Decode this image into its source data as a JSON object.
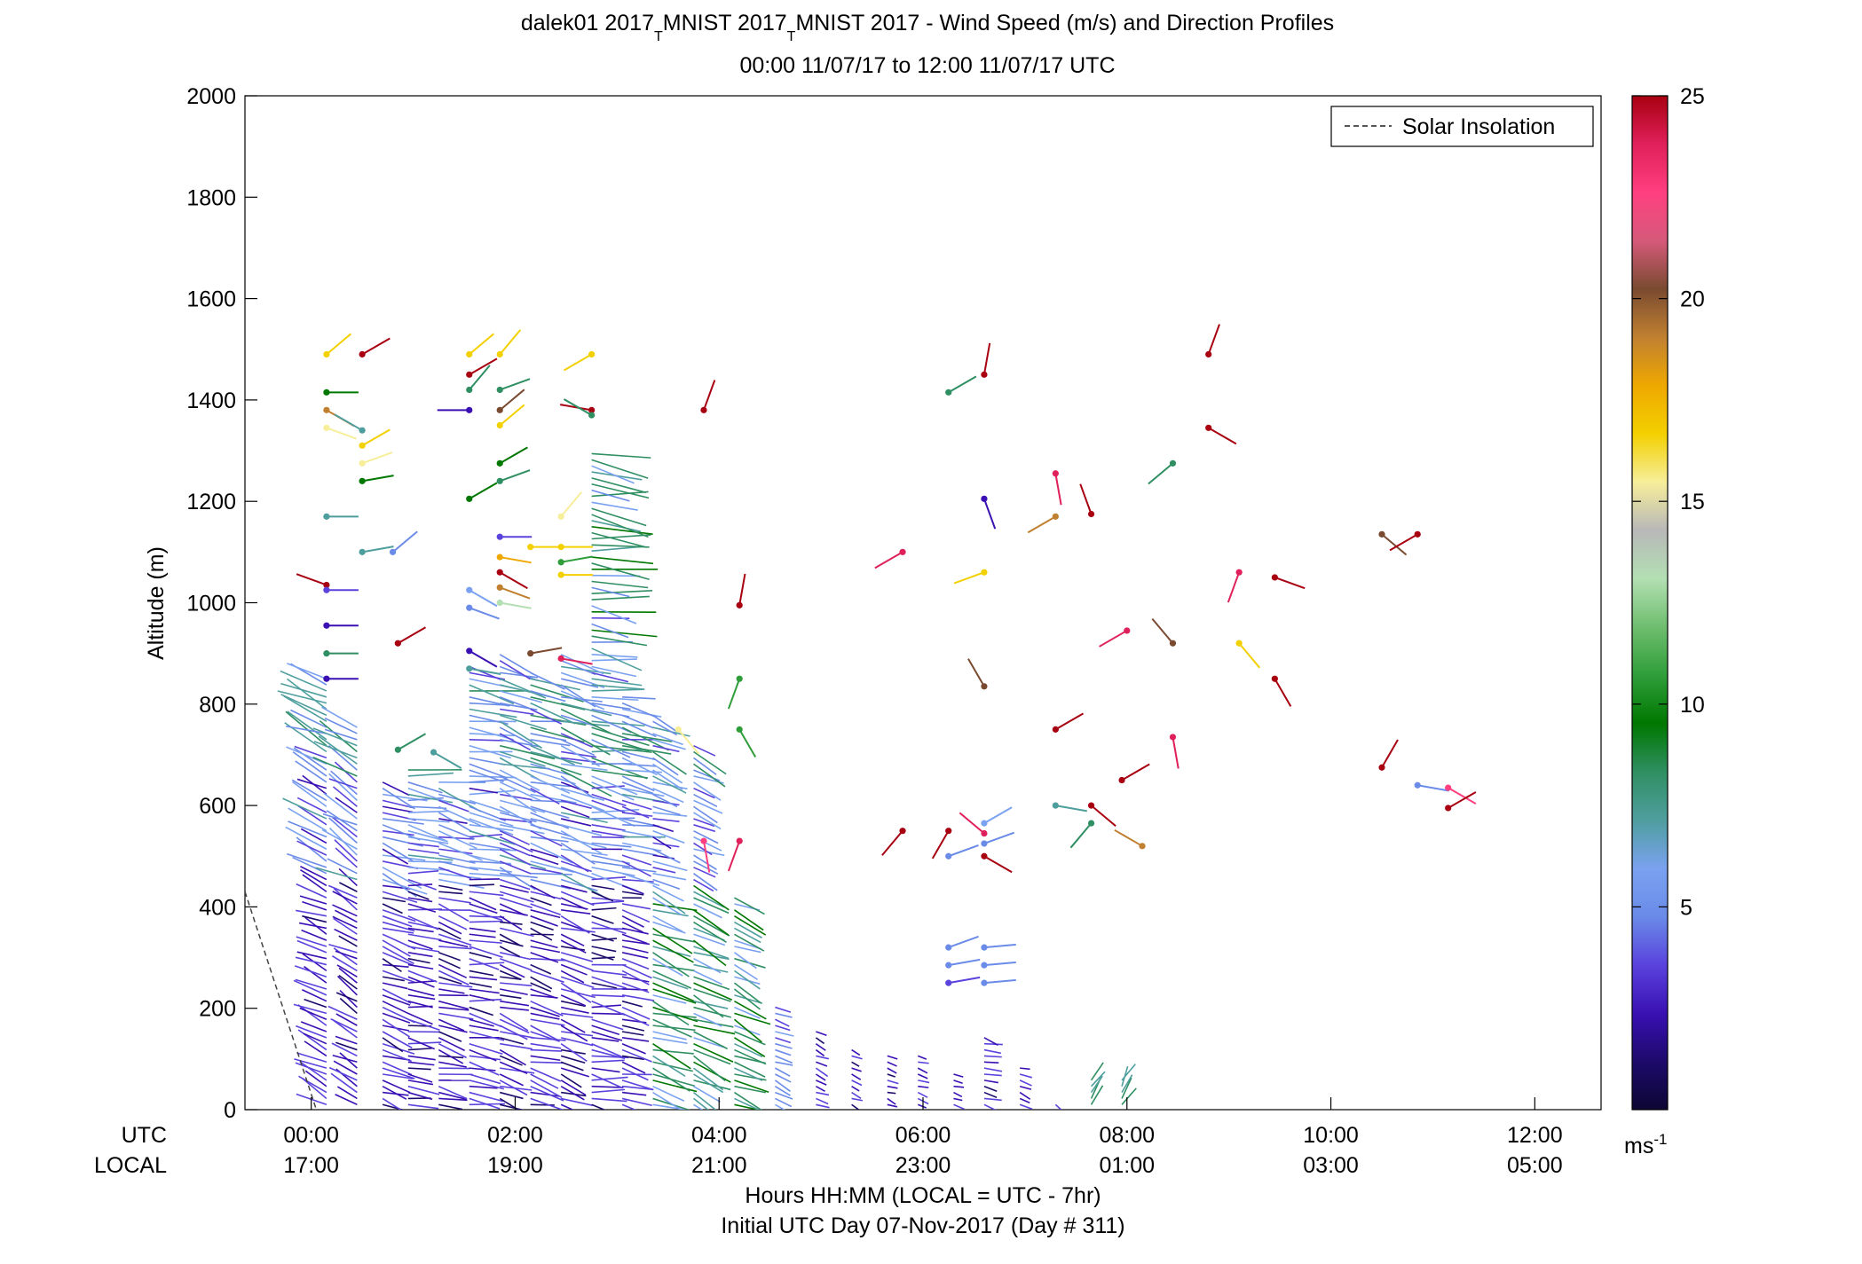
{
  "chart_data": {
    "type": "scatter",
    "title": {
      "line1_prefix": "dalek01 2017",
      "sub1": "T",
      "line1_mid": "MNIST 2017",
      "sub2": "T",
      "line1_suffix": "MNIST 2017 - Wind Speed (m/s) and Direction Profiles",
      "line2": "00:00 11/07/17 to 12:00 11/07/17  UTC"
    },
    "ylabel": "Altitude (m)",
    "ylim": [
      0,
      2000
    ],
    "y_ticks": [
      "0",
      "200",
      "400",
      "600",
      "800",
      "1000",
      "1200",
      "1400",
      "1600",
      "1800",
      "2000"
    ],
    "xlim_hours": [
      -0.65,
      12.65
    ],
    "x_ticks": [
      {
        "utc": "00:00",
        "local": "17:00"
      },
      {
        "utc": "02:00",
        "local": "19:00"
      },
      {
        "utc": "04:00",
        "local": "21:00"
      },
      {
        "utc": "06:00",
        "local": "23:00"
      },
      {
        "utc": "08:00",
        "local": "01:00"
      },
      {
        "utc": "10:00",
        "local": "03:00"
      },
      {
        "utc": "12:00",
        "local": "05:00"
      }
    ],
    "x_row_labels": {
      "utc": "UTC",
      "local": "LOCAL"
    },
    "xlabel1": "Hours HH:MM  (LOCAL = UTC - 7hr)",
    "xlabel2": "Initial UTC Day 07-Nov-2017 (Day # 311)",
    "legend": {
      "label": "Solar Insolation",
      "placement": "top-right"
    },
    "colorbar": {
      "ticks": [
        "5",
        "10",
        "15",
        "20",
        "25"
      ],
      "tick_values": [
        5,
        10,
        15,
        20,
        25
      ],
      "range": [
        0,
        25
      ],
      "unit_base": "ms",
      "unit_exp": "-1",
      "colors": [
        "#0d0633",
        "#1d0a6b",
        "#3a10b4",
        "#5a43dd",
        "#6a8be8",
        "#7aa2f0",
        "#4f9e9e",
        "#2f8f62",
        "#007700",
        "#2f9e3a",
        "#6fbe6f",
        "#b3dfb3",
        "#b8b8b8",
        "#f7ee9a",
        "#f3d000",
        "#efa800",
        "#c08030",
        "#7a4a30",
        "#d65a7a",
        "#ff3f80",
        "#e0205a",
        "#a80010"
      ]
    },
    "solar_insolation": [
      {
        "x": -0.65,
        "y": 430
      },
      {
        "x": 0.05,
        "y": 0
      }
    ],
    "profiles": [
      {
        "t": 0.15,
        "top": 860,
        "dir": 295,
        "scale": 1.0
      },
      {
        "t": 0.45,
        "top": 760,
        "dir": 300,
        "scale": 0.9
      },
      {
        "t": 0.7,
        "top": 650,
        "dir": 110,
        "scale": 1.0
      },
      {
        "t": 0.95,
        "top": 680,
        "dir": 100,
        "scale": 0.95
      },
      {
        "t": 1.25,
        "top": 650,
        "dir": 105,
        "scale": 1.0
      },
      {
        "t": 1.55,
        "top": 880,
        "dir": 100,
        "scale": 1.0
      },
      {
        "t": 1.85,
        "top": 900,
        "dir": 110,
        "scale": 1.0
      },
      {
        "t": 2.15,
        "top": 870,
        "dir": 105,
        "scale": 1.0
      },
      {
        "t": 2.45,
        "top": 900,
        "dir": 110,
        "scale": 1.0
      },
      {
        "t": 2.75,
        "top": 1300,
        "dir": 100,
        "scale": 1.05
      },
      {
        "t": 3.05,
        "top": 820,
        "dir": 105,
        "scale": 0.9
      },
      {
        "t": 3.35,
        "top": 780,
        "dir": 110,
        "scale": 0.75
      },
      {
        "t": 3.75,
        "top": 720,
        "dir": 115,
        "scale": 0.7
      },
      {
        "t": 4.15,
        "top": 420,
        "dir": 115,
        "scale": 0.6
      },
      {
        "t": 4.55,
        "top": 210,
        "dir": 115,
        "scale": 0.45
      },
      {
        "t": 4.95,
        "top": 160,
        "dir": 115,
        "scale": 0.4
      },
      {
        "t": 5.3,
        "top": 120,
        "dir": 115,
        "scale": 0.35
      },
      {
        "t": 5.65,
        "top": 110,
        "dir": 110,
        "scale": 0.35
      },
      {
        "t": 5.95,
        "top": 110,
        "dir": 110,
        "scale": 0.35
      },
      {
        "t": 6.3,
        "top": 80,
        "dir": 110,
        "scale": 0.35
      },
      {
        "t": 6.6,
        "top": 150,
        "dir": 105,
        "scale": 0.55
      },
      {
        "t": 6.95,
        "top": 90,
        "dir": 110,
        "scale": 0.4
      },
      {
        "t": 7.3,
        "top": 20,
        "dir": 120,
        "scale": 0.25
      },
      {
        "t": 7.65,
        "top": 60,
        "dir": 30,
        "scale": 0.4
      },
      {
        "t": 7.95,
        "top": 60,
        "dir": 30,
        "scale": 0.4
      }
    ],
    "barbs": [
      {
        "t": 0.15,
        "alt": 1490,
        "spd": 17,
        "dir": 50
      },
      {
        "t": 0.5,
        "alt": 1490,
        "spd": 24,
        "dir": 60
      },
      {
        "t": 0.15,
        "alt": 1415,
        "spd": 10,
        "dir": 90
      },
      {
        "t": 0.15,
        "alt": 1380,
        "spd": 19,
        "dir": 120
      },
      {
        "t": 0.15,
        "alt": 1345,
        "spd": 15,
        "dir": 110
      },
      {
        "t": 0.5,
        "alt": 1340,
        "spd": 7,
        "dir": 300
      },
      {
        "t": 0.5,
        "alt": 1310,
        "spd": 16,
        "dir": 60
      },
      {
        "t": 0.5,
        "alt": 1275,
        "spd": 15,
        "dir": 70
      },
      {
        "t": 0.5,
        "alt": 1240,
        "spd": 10,
        "dir": 80
      },
      {
        "t": 0.15,
        "alt": 1170,
        "spd": 7,
        "dir": 90
      },
      {
        "t": 0.5,
        "alt": 1100,
        "spd": 7,
        "dir": 80
      },
      {
        "t": 0.8,
        "alt": 1100,
        "spd": 5,
        "dir": 50
      },
      {
        "t": 0.15,
        "alt": 1035,
        "spd": 24,
        "dir": 290
      },
      {
        "t": 0.15,
        "alt": 1025,
        "spd": 4,
        "dir": 90
      },
      {
        "t": 0.15,
        "alt": 955,
        "spd": 3,
        "dir": 90
      },
      {
        "t": 0.15,
        "alt": 900,
        "spd": 8,
        "dir": 90
      },
      {
        "t": 0.85,
        "alt": 920,
        "spd": 24,
        "dir": 60
      },
      {
        "t": 0.15,
        "alt": 850,
        "spd": 3,
        "dir": 90
      },
      {
        "t": 0.85,
        "alt": 710,
        "spd": 8,
        "dir": 60
      },
      {
        "t": 1.2,
        "alt": 705,
        "spd": 7,
        "dir": 120
      },
      {
        "t": 1.55,
        "alt": 1490,
        "spd": 17,
        "dir": 50
      },
      {
        "t": 1.85,
        "alt": 1490,
        "spd": 17,
        "dir": 40
      },
      {
        "t": 1.55,
        "alt": 1450,
        "spd": 24,
        "dir": 60
      },
      {
        "t": 1.85,
        "alt": 1420,
        "spd": 8,
        "dir": 70
      },
      {
        "t": 1.55,
        "alt": 1420,
        "spd": 8,
        "dir": 40
      },
      {
        "t": 1.55,
        "alt": 1380,
        "spd": 3,
        "dir": 270
      },
      {
        "t": 1.85,
        "alt": 1380,
        "spd": 20,
        "dir": 50
      },
      {
        "t": 1.85,
        "alt": 1350,
        "spd": 17,
        "dir": 50
      },
      {
        "t": 1.85,
        "alt": 1275,
        "spd": 10,
        "dir": 60
      },
      {
        "t": 1.85,
        "alt": 1240,
        "spd": 9,
        "dir": 70
      },
      {
        "t": 1.55,
        "alt": 1205,
        "spd": 10,
        "dir": 60
      },
      {
        "t": 1.85,
        "alt": 1130,
        "spd": 4,
        "dir": 90
      },
      {
        "t": 1.85,
        "alt": 1090,
        "spd": 18,
        "dir": 100
      },
      {
        "t": 1.85,
        "alt": 1060,
        "spd": 24,
        "dir": 120
      },
      {
        "t": 1.85,
        "alt": 1030,
        "spd": 19,
        "dir": 110
      },
      {
        "t": 1.55,
        "alt": 1025,
        "spd": 6,
        "dir": 120
      },
      {
        "t": 1.85,
        "alt": 1000,
        "spd": 13,
        "dir": 100
      },
      {
        "t": 1.55,
        "alt": 990,
        "spd": 5,
        "dir": 110
      },
      {
        "t": 1.55,
        "alt": 905,
        "spd": 3,
        "dir": 120
      },
      {
        "t": 1.55,
        "alt": 870,
        "spd": 7,
        "dir": 100
      },
      {
        "t": 2.15,
        "alt": 1110,
        "spd": 17,
        "dir": 90
      },
      {
        "t": 2.45,
        "alt": 1170,
        "spd": 15,
        "dir": 40
      },
      {
        "t": 2.45,
        "alt": 1110,
        "spd": 16,
        "dir": 90
      },
      {
        "t": 2.45,
        "alt": 1080,
        "spd": 11,
        "dir": 80
      },
      {
        "t": 2.45,
        "alt": 1055,
        "spd": 17,
        "dir": 90
      },
      {
        "t": 2.75,
        "alt": 1490,
        "spd": 17,
        "dir": 240
      },
      {
        "t": 2.75,
        "alt": 1380,
        "spd": 24,
        "dir": 280
      },
      {
        "t": 2.75,
        "alt": 1370,
        "spd": 9,
        "dir": 300
      },
      {
        "t": 2.15,
        "alt": 900,
        "spd": 20,
        "dir": 80
      },
      {
        "t": 2.45,
        "alt": 890,
        "spd": 23,
        "dir": 100
      },
      {
        "t": 3.85,
        "alt": 1380,
        "spd": 24,
        "dir": 20
      },
      {
        "t": 4.2,
        "alt": 995,
        "spd": 24,
        "dir": 10
      },
      {
        "t": 4.2,
        "alt": 850,
        "spd": 11,
        "dir": 200
      },
      {
        "t": 4.2,
        "alt": 750,
        "spd": 11,
        "dir": 150
      },
      {
        "t": 3.85,
        "alt": 530,
        "spd": 22,
        "dir": 170
      },
      {
        "t": 4.2,
        "alt": 530,
        "spd": 23,
        "dir": 200
      },
      {
        "t": 3.6,
        "alt": 750,
        "spd": 15,
        "dir": 140
      },
      {
        "t": 6.25,
        "alt": 1415,
        "spd": 8,
        "dir": 60
      },
      {
        "t": 6.6,
        "alt": 1450,
        "spd": 24,
        "dir": 10
      },
      {
        "t": 6.6,
        "alt": 1205,
        "spd": 3,
        "dir": 160
      },
      {
        "t": 6.6,
        "alt": 1060,
        "spd": 16,
        "dir": 250
      },
      {
        "t": 7.3,
        "alt": 1255,
        "spd": 23,
        "dir": 170
      },
      {
        "t": 7.3,
        "alt": 1170,
        "spd": 19,
        "dir": 240
      },
      {
        "t": 7.65,
        "alt": 1175,
        "spd": 24,
        "dir": 340
      },
      {
        "t": 5.8,
        "alt": 1100,
        "spd": 23,
        "dir": 240
      },
      {
        "t": 6.6,
        "alt": 835,
        "spd": 20,
        "dir": 330
      },
      {
        "t": 7.3,
        "alt": 750,
        "spd": 24,
        "dir": 60
      },
      {
        "t": 7.95,
        "alt": 650,
        "spd": 24,
        "dir": 60
      },
      {
        "t": 5.8,
        "alt": 550,
        "spd": 24,
        "dir": 220
      },
      {
        "t": 6.25,
        "alt": 550,
        "spd": 24,
        "dir": 210
      },
      {
        "t": 6.25,
        "alt": 500,
        "spd": 5,
        "dir": 70
      },
      {
        "t": 6.6,
        "alt": 565,
        "spd": 6,
        "dir": 60
      },
      {
        "t": 6.6,
        "alt": 545,
        "spd": 23,
        "dir": 310
      },
      {
        "t": 6.6,
        "alt": 525,
        "spd": 5,
        "dir": 70
      },
      {
        "t": 6.6,
        "alt": 500,
        "spd": 24,
        "dir": 120
      },
      {
        "t": 6.25,
        "alt": 320,
        "spd": 5,
        "dir": 70
      },
      {
        "t": 6.25,
        "alt": 285,
        "spd": 5,
        "dir": 80
      },
      {
        "t": 6.25,
        "alt": 250,
        "spd": 4,
        "dir": 80
      },
      {
        "t": 6.6,
        "alt": 320,
        "spd": 5,
        "dir": 85
      },
      {
        "t": 6.6,
        "alt": 285,
        "spd": 5,
        "dir": 85
      },
      {
        "t": 6.6,
        "alt": 250,
        "spd": 5,
        "dir": 85
      },
      {
        "t": 7.3,
        "alt": 600,
        "spd": 7,
        "dir": 100
      },
      {
        "t": 7.65,
        "alt": 600,
        "spd": 24,
        "dir": 130
      },
      {
        "t": 7.65,
        "alt": 565,
        "spd": 9,
        "dir": 220
      },
      {
        "t": 8.15,
        "alt": 520,
        "spd": 19,
        "dir": 300
      },
      {
        "t": 8.0,
        "alt": 945,
        "spd": 23,
        "dir": 240
      },
      {
        "t": 8.45,
        "alt": 920,
        "spd": 20,
        "dir": 320
      },
      {
        "t": 8.45,
        "alt": 1275,
        "spd": 9,
        "dir": 230
      },
      {
        "t": 8.45,
        "alt": 735,
        "spd": 23,
        "dir": 170
      },
      {
        "t": 8.8,
        "alt": 1490,
        "spd": 24,
        "dir": 20
      },
      {
        "t": 8.8,
        "alt": 1345,
        "spd": 24,
        "dir": 120
      },
      {
        "t": 9.1,
        "alt": 1060,
        "spd": 23,
        "dir": 200
      },
      {
        "t": 9.1,
        "alt": 920,
        "spd": 17,
        "dir": 140
      },
      {
        "t": 9.45,
        "alt": 1050,
        "spd": 24,
        "dir": 110
      },
      {
        "t": 9.45,
        "alt": 850,
        "spd": 24,
        "dir": 150
      },
      {
        "t": 10.5,
        "alt": 1135,
        "spd": 20,
        "dir": 130
      },
      {
        "t": 10.85,
        "alt": 1135,
        "spd": 24,
        "dir": 240
      },
      {
        "t": 10.5,
        "alt": 675,
        "spd": 24,
        "dir": 30
      },
      {
        "t": 10.85,
        "alt": 640,
        "spd": 5,
        "dir": 100
      },
      {
        "t": 11.15,
        "alt": 635,
        "spd": 22,
        "dir": 120
      },
      {
        "t": 11.15,
        "alt": 595,
        "spd": 24,
        "dir": 60
      }
    ]
  }
}
